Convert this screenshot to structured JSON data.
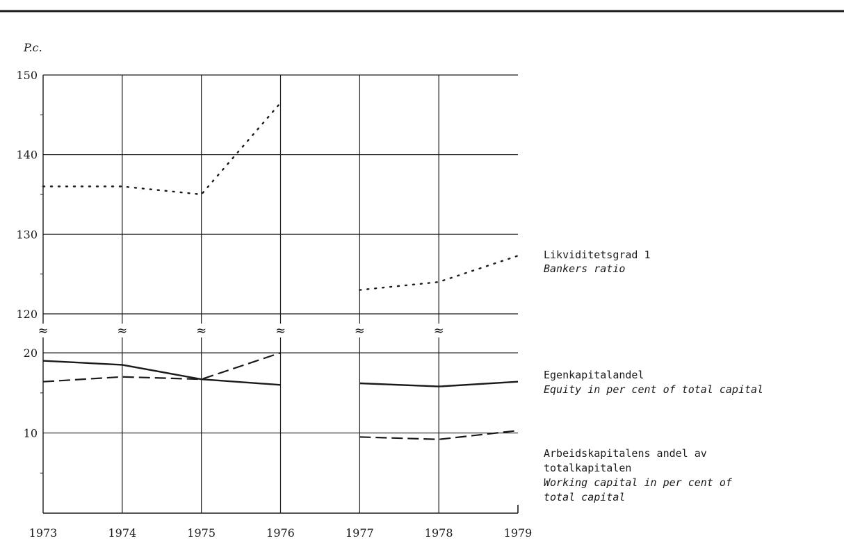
{
  "chart_data": {
    "type": "line",
    "unit_label": "P.c.",
    "x": [
      "1973",
      "1974",
      "1975",
      "1976",
      "1977",
      "1978",
      "1979"
    ],
    "upper_axis": {
      "ticks": [
        "150",
        "140",
        "130",
        "120"
      ],
      "ylim": [
        120,
        150
      ]
    },
    "lower_axis": {
      "ticks": [
        "20",
        "10"
      ],
      "ylim": [
        0,
        22
      ]
    },
    "axis_break_symbol": "≈",
    "grid": true,
    "series": [
      {
        "name": "Likviditetsgrad 1",
        "name_en": "Bankers ratio",
        "style": "dotted",
        "axis": "upper",
        "segments": [
          [
            [
              1973,
              136
            ],
            [
              1974,
              136
            ],
            [
              1975,
              135
            ],
            [
              1976,
              146.5
            ]
          ],
          [
            [
              1977,
              123
            ],
            [
              1978,
              124
            ],
            [
              1979,
              127.3
            ]
          ]
        ]
      },
      {
        "name": "Egenkapitalandel",
        "name_en": "Equity in per cent of total capital",
        "style": "solid",
        "axis": "lower",
        "segments": [
          [
            [
              1973,
              19
            ],
            [
              1974,
              18.5
            ],
            [
              1975,
              16.7
            ],
            [
              1976,
              16
            ]
          ],
          [
            [
              1977,
              16.2
            ],
            [
              1978,
              15.8
            ],
            [
              1979,
              16.4
            ]
          ]
        ]
      },
      {
        "name": "Arbeidskapitalens andel av",
        "name_line2": "totalkapitalen",
        "name_en": "Working capital in per cent of",
        "name_en_line2": "total capital",
        "style": "dashed",
        "axis": "lower",
        "segments": [
          [
            [
              1973,
              16.4
            ],
            [
              1974,
              17
            ],
            [
              1975,
              16.7
            ],
            [
              1976,
              20
            ]
          ],
          [
            [
              1977,
              9.5
            ],
            [
              1978,
              9.2
            ],
            [
              1979,
              10.3
            ]
          ]
        ]
      }
    ],
    "colors": {
      "ink": "#1a1a1a",
      "grid": "#1a1a1a"
    }
  }
}
